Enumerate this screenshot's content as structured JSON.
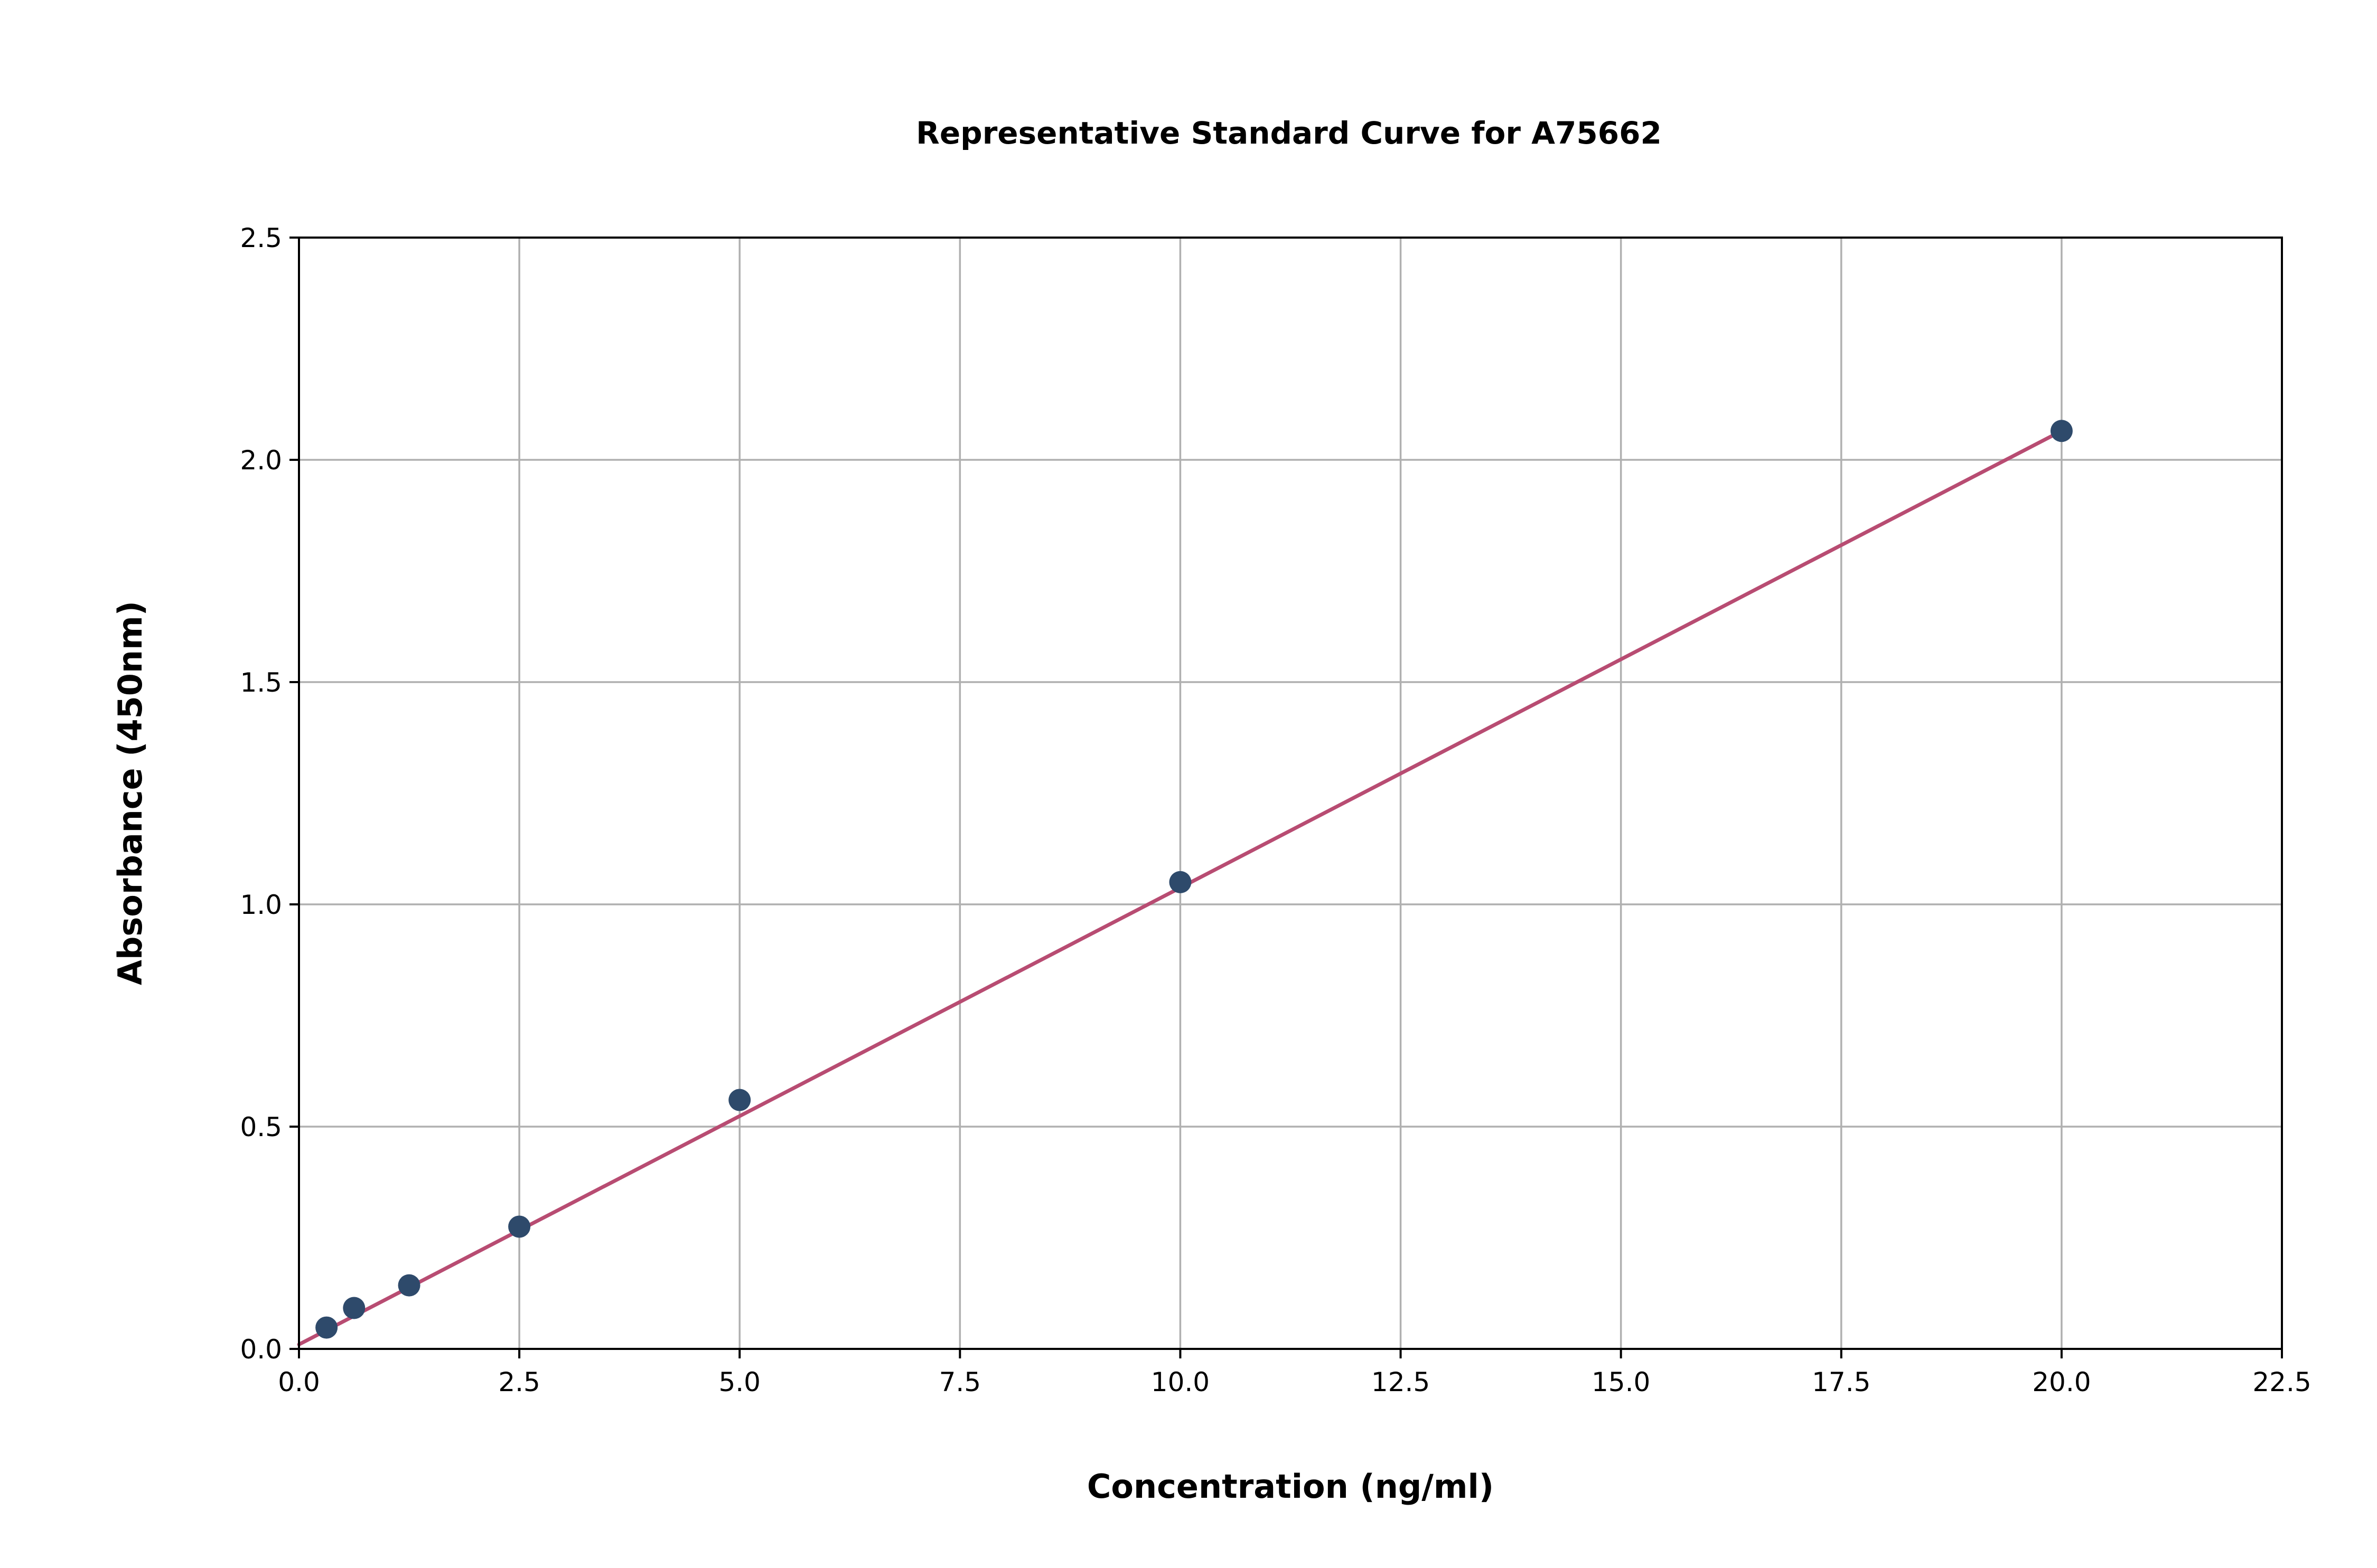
{
  "chart_data": {
    "type": "scatter",
    "title": "Representative Standard Curve for A75662",
    "xlabel": "Concentration (ng/ml)",
    "ylabel": "Absorbance (450nm)",
    "xlim": [
      0,
      22.5
    ],
    "ylim": [
      0,
      2.5
    ],
    "x_ticks": [
      "0.0",
      "2.5",
      "5.0",
      "7.5",
      "10.0",
      "12.5",
      "15.0",
      "17.5",
      "20.0",
      "22.5"
    ],
    "y_ticks": [
      "0.0",
      "0.5",
      "1.0",
      "1.5",
      "2.0",
      "2.5"
    ],
    "grid": true,
    "legend": "none",
    "series": [
      {
        "kind": "points",
        "color": "#2e4a6b",
        "x": [
          0.3125,
          0.625,
          1.25,
          2.5,
          5,
          10,
          20
        ],
        "y": [
          0.048,
          0.092,
          0.143,
          0.275,
          0.56,
          1.05,
          2.065
        ]
      },
      {
        "kind": "fit-line",
        "color": "#b84c72",
        "x": [
          0,
          20
        ],
        "y": [
          0.01,
          2.065
        ]
      }
    ]
  }
}
